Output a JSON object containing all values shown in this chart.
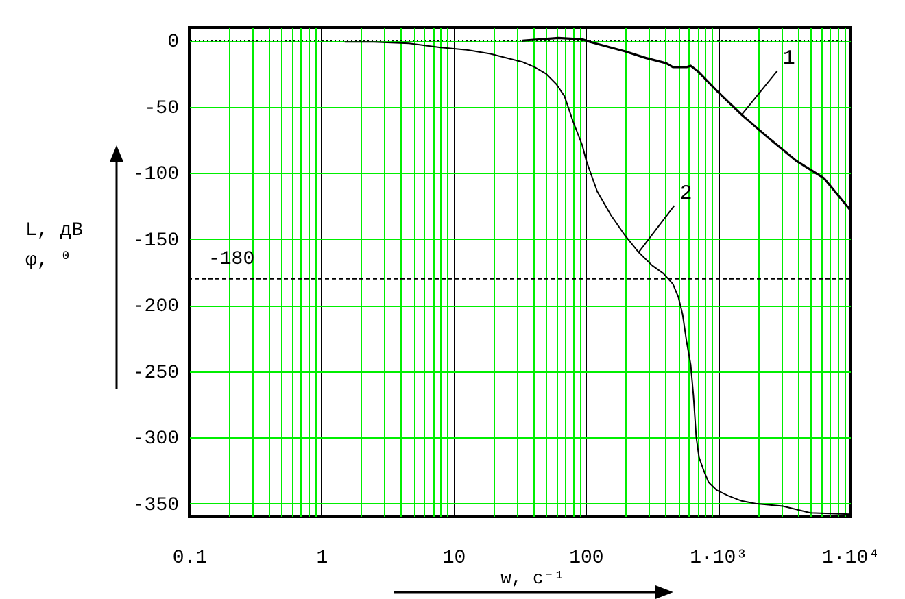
{
  "chart_data": {
    "type": "line",
    "xlabel": "w,  с⁻¹",
    "ylabel": "L,  дВ\nφ,  ⁰",
    "log": "x",
    "grid": true,
    "xlim": [
      0.1,
      10000
    ],
    "ylim": [
      -360,
      10
    ],
    "xticks": [
      0.1,
      {
        "value": 0.2,
        "label": null
      },
      {
        "value": 0.3,
        "label": null
      },
      {
        "value": 0.4,
        "label": null
      },
      {
        "value": 0.5,
        "label": null
      },
      {
        "value": 0.6,
        "label": null
      },
      {
        "value": 0.7,
        "label": null
      },
      {
        "value": 0.8,
        "label": null
      },
      {
        "value": 0.9,
        "label": null
      },
      1,
      {
        "value": 2,
        "label": null
      },
      {
        "value": 3,
        "label": null
      },
      {
        "value": 4,
        "label": null
      },
      {
        "value": 5,
        "label": null
      },
      {
        "value": 6,
        "label": null
      },
      {
        "value": 7,
        "label": null
      },
      {
        "value": 8,
        "label": null
      },
      {
        "value": 9,
        "label": null
      },
      10,
      {
        "value": 20,
        "label": null
      },
      {
        "value": 30,
        "label": null
      },
      {
        "value": 40,
        "label": null
      },
      {
        "value": 50,
        "label": null
      },
      {
        "value": 60,
        "label": null
      },
      {
        "value": 70,
        "label": null
      },
      {
        "value": 80,
        "label": null
      },
      {
        "value": 90,
        "label": null
      },
      100,
      {
        "value": 200,
        "label": null
      },
      {
        "value": 300,
        "label": null
      },
      {
        "value": 400,
        "label": null
      },
      {
        "value": 500,
        "label": null
      },
      {
        "value": 600,
        "label": null
      },
      {
        "value": 700,
        "label": null
      },
      {
        "value": 800,
        "label": null
      },
      {
        "value": 900,
        "label": null
      },
      {
        "value": 1000,
        "label": "1·10³"
      },
      {
        "value": 2000,
        "label": null
      },
      {
        "value": 3000,
        "label": null
      },
      {
        "value": 4000,
        "label": null
      },
      {
        "value": 5000,
        "label": null
      },
      {
        "value": 6000,
        "label": null
      },
      {
        "value": 7000,
        "label": null
      },
      {
        "value": 8000,
        "label": null
      },
      {
        "value": 9000,
        "label": null
      },
      {
        "value": 10000,
        "label": "1·10⁴"
      }
    ],
    "yticks": [
      0,
      -50,
      -100,
      -150,
      -200,
      -250,
      -300,
      -350
    ],
    "series": [
      {
        "name": "1",
        "color": "#000000",
        "x": [
          33,
          62,
          94,
          108,
          197,
          283,
          405,
          456,
          580,
          622,
          702,
          982,
          1510,
          2440,
          3930,
          6340,
          10000
        ],
        "values": [
          0,
          2,
          1,
          -1,
          -8,
          -13,
          -17,
          -20,
          -20,
          -19,
          -23,
          -38,
          -56,
          -74,
          -91,
          -104,
          -128
        ]
      },
      {
        "name": "2",
        "color": "#000000",
        "x": [
          1.5,
          2.5,
          4.6,
          7.8,
          12.6,
          19,
          33,
          41,
          50,
          60,
          69,
          80,
          94,
          101,
          122,
          155,
          197,
          251,
          318,
          386,
          456,
          502,
          540,
          580,
          622,
          653,
          685,
          719,
          773,
          850,
          982,
          1190,
          1510,
          1920,
          3100,
          5000,
          10000
        ],
        "values": [
          -1,
          -1,
          -2,
          -5,
          -7,
          -10,
          -16,
          -20,
          -25,
          -33,
          -42,
          -61,
          -79,
          -91,
          -114,
          -132,
          -147,
          -160,
          -170,
          -176,
          -184,
          -194,
          -207,
          -228,
          -245,
          -269,
          -300,
          -315,
          -324,
          -334,
          -340,
          -344,
          -348,
          -350,
          -352,
          -357,
          -358
        ]
      }
    ],
    "ref_lines": [
      {
        "axis": "y",
        "value": -180,
        "label": "-180",
        "line_style": "dashed"
      },
      {
        "axis": "y",
        "value": 0,
        "line_style": "dotted"
      }
    ]
  }
}
